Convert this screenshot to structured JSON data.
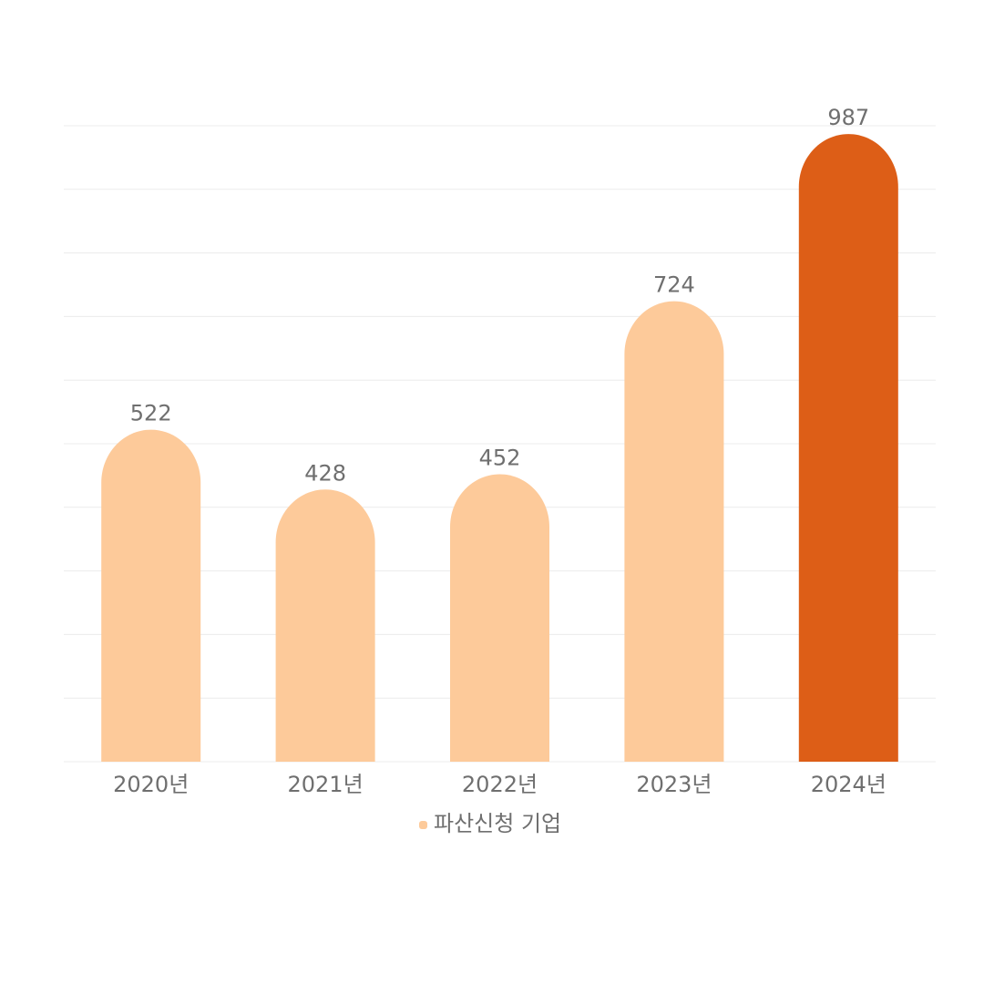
{
  "chart_data": {
    "type": "bar",
    "categories": [
      "2020년",
      "2021년",
      "2022년",
      "2023년",
      "2024년"
    ],
    "series": [
      {
        "name": "파산신청 기업",
        "color": "#fdca9a",
        "colors": [
          "#fdca9a",
          "#fdca9a",
          "#fdca9a",
          "#fdca9a",
          "#dd5e17"
        ],
        "values": [
          522,
          428,
          452,
          724,
          987
        ]
      }
    ],
    "ylim": [
      0,
      1000
    ],
    "yticks": [
      0,
      100,
      200,
      300,
      400,
      500,
      600,
      700,
      800,
      900,
      1000
    ],
    "grid": true,
    "legend": "bottom"
  }
}
